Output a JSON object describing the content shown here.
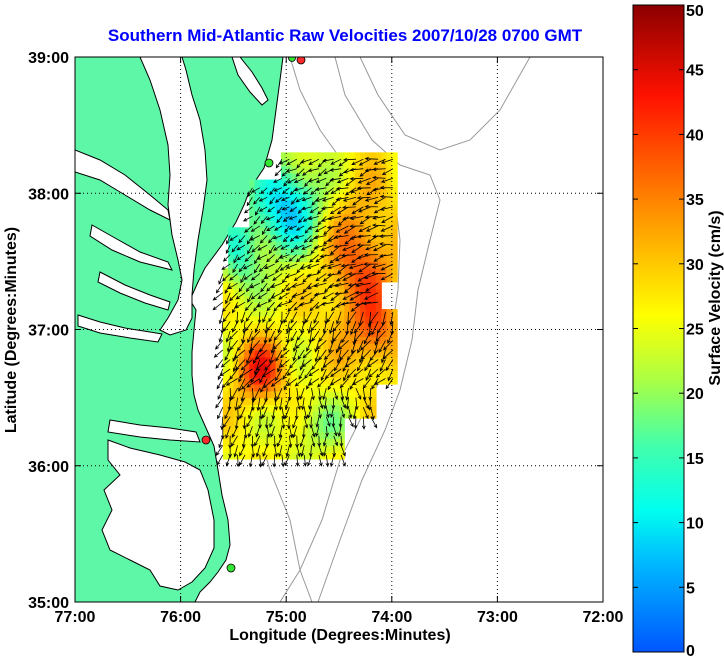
{
  "chart_data": {
    "type": "heatmap",
    "title": "Southern Mid-Atlantic Raw Velocities 2007/10/28 0700 GMT",
    "xlabel": "Longitude (Degrees:Minutes)",
    "ylabel": "Latitude (Degrees:Minutes)",
    "xlim": [
      -77,
      -72
    ],
    "ylim": [
      35,
      39
    ],
    "x_ticks": [
      {
        "value": -77,
        "label": "77:00"
      },
      {
        "value": -76,
        "label": "76:00"
      },
      {
        "value": -75,
        "label": "75:00"
      },
      {
        "value": -74,
        "label": "74:00"
      },
      {
        "value": -73,
        "label": "73:00"
      },
      {
        "value": -72,
        "label": "72:00"
      }
    ],
    "y_ticks": [
      {
        "value": 35,
        "label": "35:00"
      },
      {
        "value": 36,
        "label": "36:00"
      },
      {
        "value": 37,
        "label": "37:00"
      },
      {
        "value": 38,
        "label": "38:00"
      },
      {
        "value": 39,
        "label": "39:00"
      }
    ],
    "grid": true,
    "colorbar": {
      "label": "Surface Velocity (cm/s)",
      "min": 0,
      "max": 50,
      "ticks": [
        {
          "value": 0,
          "label": "0"
        },
        {
          "value": 5,
          "label": "5"
        },
        {
          "value": 10,
          "label": "10"
        },
        {
          "value": 15,
          "label": "15"
        },
        {
          "value": 20,
          "label": "20"
        },
        {
          "value": 25,
          "label": "25"
        },
        {
          "value": 30,
          "label": "30"
        },
        {
          "value": 35,
          "label": "35"
        },
        {
          "value": 40,
          "label": "40"
        },
        {
          "value": 45,
          "label": "45"
        },
        {
          "value": 50,
          "label": "50"
        }
      ]
    },
    "colors": {
      "land": "#5ef7a8",
      "water": "#ffffff",
      "coast": "#000000",
      "bathymetry": "#999999",
      "title": "#0000ff",
      "station_red": "#ff2a2a",
      "station_green": "#33e633"
    }
  }
}
